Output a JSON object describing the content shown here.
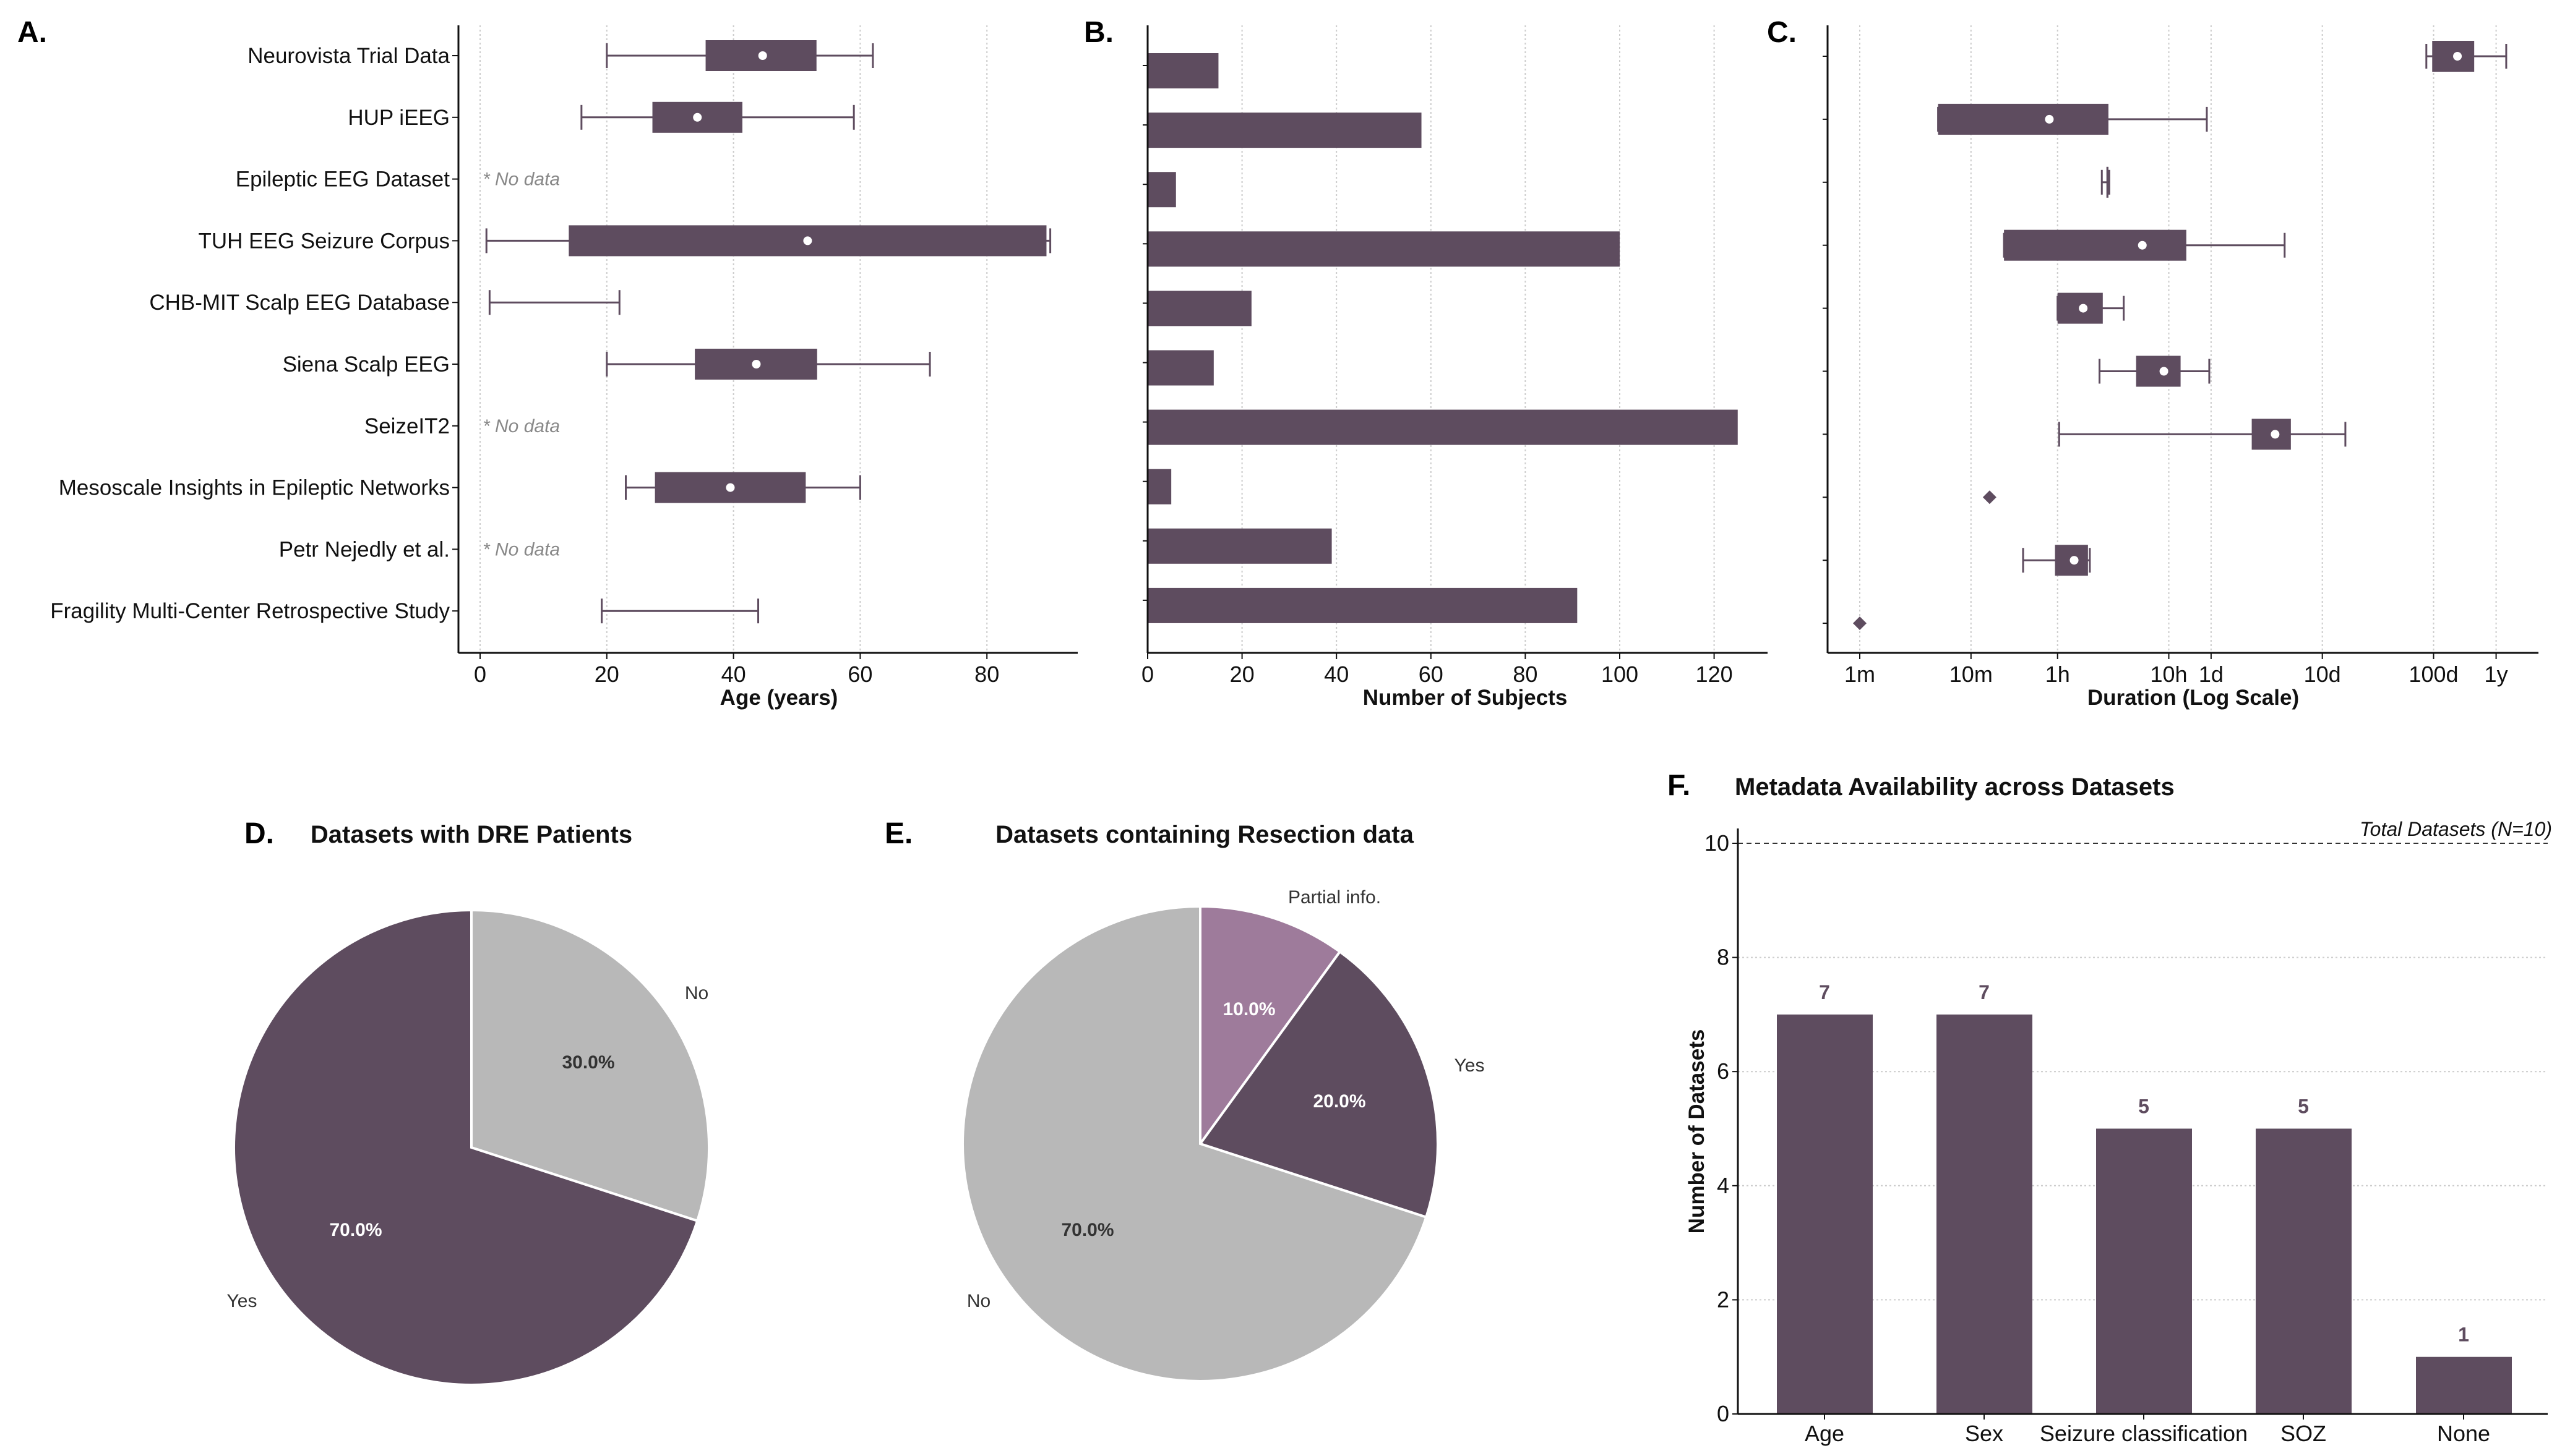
{
  "colors": {
    "primary": "#5e4c5f",
    "gray": "#b8b8b8",
    "light": "#9e7b9b",
    "axis": "#111111",
    "nodata": "#888888"
  },
  "chart_data": [
    {
      "panel": "A.",
      "type": "boxplot",
      "orientation": "horizontal",
      "xlabel": "Age (years)",
      "xlim": [
        -3.4,
        94
      ],
      "xticks": [
        0,
        20,
        40,
        60,
        80
      ],
      "grid": "vertical dotted",
      "no_data_label": "* No data",
      "categories": [
        "Neurovista Trial Data",
        "HUP iEEG",
        "Epileptic EEG Dataset",
        "TUH EEG Seizure Corpus",
        "CHB-MIT Scalp EEG Database",
        "Siena Scalp EEG",
        "SeizeIT2",
        "Mesoscale Insights in Epileptic Networks",
        "Petr Nejedly et al.",
        "Fragility Multi-Center Retrospective Study"
      ],
      "series": [
        {
          "min": 20,
          "q1": 35.6,
          "q3": 53.1,
          "max": 62,
          "mean": 44.6
        },
        {
          "min": 16,
          "q1": 27.2,
          "q3": 41.4,
          "max": 59,
          "mean": 34.3
        },
        null,
        {
          "min": 1,
          "q1": 14,
          "q3": 89.4,
          "max": 90,
          "mean": 51.7
        },
        {
          "min": 1.5,
          "max": 22
        },
        {
          "min": 20,
          "q1": 33.9,
          "q3": 53.2,
          "max": 71,
          "mean": 43.6
        },
        null,
        {
          "min": 23,
          "q1": 27.6,
          "q3": 51.4,
          "max": 60,
          "mean": 39.5
        },
        null,
        {
          "min": 19.2,
          "max": 43.9
        }
      ]
    },
    {
      "panel": "B.",
      "type": "bar",
      "orientation": "horizontal",
      "xlabel": "Number of Subjects",
      "xlim": [
        0,
        131
      ],
      "xticks": [
        0,
        20,
        40,
        60,
        80,
        100,
        120
      ],
      "grid": "vertical dotted",
      "values": [
        15,
        58,
        6,
        100,
        22,
        14,
        125,
        5,
        39,
        91
      ]
    },
    {
      "panel": "C.",
      "type": "boxplot",
      "orientation": "horizontal",
      "scale": "log",
      "unit": "minutes",
      "xlabel": "Duration (Log Scale)",
      "xlim": [
        0.51,
        1260000
      ],
      "xticks": [
        {
          "value": 1,
          "label": "1m"
        },
        {
          "value": 10,
          "label": "10m"
        },
        {
          "value": 60,
          "label": "1h"
        },
        {
          "value": 600,
          "label": "10h"
        },
        {
          "value": 1440,
          "label": "1d"
        },
        {
          "value": 14400,
          "label": "10d"
        },
        {
          "value": 144000,
          "label": "100d"
        },
        {
          "value": 525600,
          "label": "1y"
        }
      ],
      "grid": "vertical dotted",
      "series": [
        {
          "min": 124000,
          "q1": 140000,
          "q3": 334000,
          "max": 648000,
          "mean": 236000
        },
        {
          "min": 5.06,
          "q1": 5.06,
          "q3": 172,
          "max": 1318,
          "mean": 50.6
        },
        {
          "min": 150,
          "q1": 165,
          "q3": 172,
          "max": 175
        },
        {
          "min": 19.8,
          "q1": 19.8,
          "q3": 862,
          "max": 6600,
          "mean": 347
        },
        {
          "min": 60,
          "q1": 60,
          "q3": 153,
          "max": 236,
          "mean": 102
        },
        {
          "min": 143,
          "q1": 305,
          "q3": 766,
          "max": 1387,
          "mean": 542
        },
        {
          "min": 62,
          "q1": 3340,
          "q3": 7510,
          "max": 23200,
          "mean": 5420
        },
        {
          "point": 14.7
        },
        {
          "min": 29.4,
          "q1": 56.9,
          "q3": 112.6,
          "max": 117,
          "mean": 84.6
        },
        {
          "point": 1
        }
      ]
    },
    {
      "panel": "D.",
      "type": "pie",
      "title": "Datasets with DRE Patients",
      "slices": [
        {
          "label": "No",
          "value": 30.0,
          "pct": "30.0%",
          "color": "#b8b8b8"
        },
        {
          "label": "Yes",
          "value": 70.0,
          "pct": "70.0%",
          "color": "#5e4c5f"
        }
      ]
    },
    {
      "panel": "E.",
      "type": "pie",
      "title": "Datasets containing Resection data",
      "slices": [
        {
          "label": "Partial info.",
          "value": 10.0,
          "pct": "10.0%",
          "color": "#9e7b9b"
        },
        {
          "label": "Yes",
          "value": 20.0,
          "pct": "20.0%",
          "color": "#5e4c5f"
        },
        {
          "label": "No",
          "value": 70.0,
          "pct": "70.0%",
          "color": "#b8b8b8"
        }
      ]
    },
    {
      "panel": "F.",
      "type": "bar",
      "title": "Metadata Availability across Datasets",
      "ylabel": "Number of Datasets",
      "ylim": [
        0,
        10.4
      ],
      "yticks": [
        0,
        2,
        4,
        6,
        8,
        10
      ],
      "grid": "horizontal dotted",
      "reference_line": {
        "value": 10,
        "label": "Total Datasets (N=10)"
      },
      "categories": [
        "Age",
        "Sex",
        "Seizure classification",
        "SOZ",
        "None"
      ],
      "values": [
        7,
        7,
        5,
        5,
        1
      ]
    }
  ]
}
